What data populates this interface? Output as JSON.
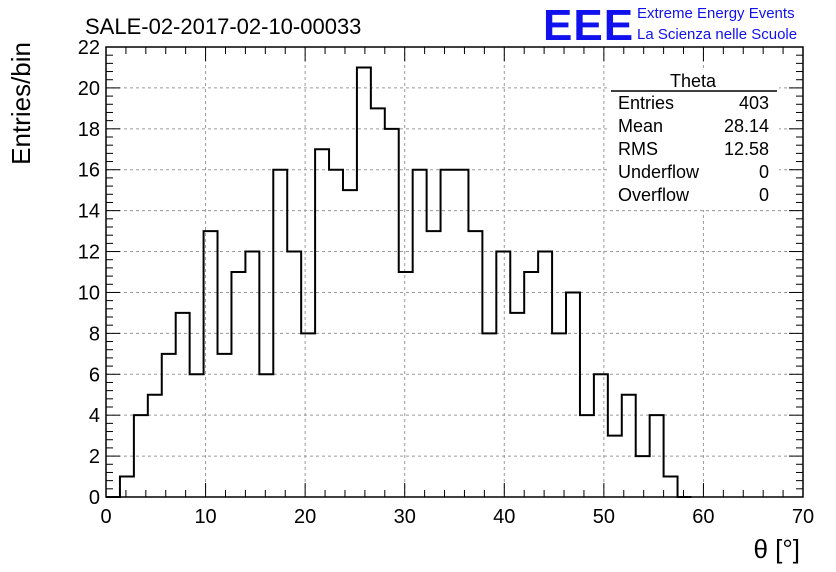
{
  "chart_data": {
    "type": "bar",
    "style": "step-histogram",
    "title": "SALE-02-2017-02-10-00033",
    "xlabel": "θ [°]",
    "ylabel": "Entries/bin",
    "xlim": [
      0,
      70
    ],
    "ylim": [
      0,
      22
    ],
    "x_ticks": [
      0,
      10,
      20,
      30,
      40,
      50,
      60,
      70
    ],
    "y_ticks": [
      0,
      2,
      4,
      6,
      8,
      10,
      12,
      14,
      16,
      18,
      20,
      22
    ],
    "bin_width": 1.4,
    "bin_start": 0,
    "values": [
      0,
      1,
      4,
      5,
      7,
      9,
      6,
      13,
      7,
      11,
      12,
      6,
      16,
      12,
      8,
      17,
      16,
      15,
      21,
      19,
      18,
      11,
      16,
      13,
      16,
      16,
      13,
      8,
      12,
      9,
      11,
      12,
      8,
      10,
      4,
      6,
      3,
      5,
      2,
      4,
      1,
      0
    ],
    "grid": true,
    "line_color": "#000000"
  },
  "stats_box": {
    "name": "Theta",
    "rows": [
      {
        "label": "Entries",
        "value": "403"
      },
      {
        "label": "Mean",
        "value": "28.14"
      },
      {
        "label": "RMS",
        "value": "12.58"
      },
      {
        "label": "Underflow",
        "value": "0"
      },
      {
        "label": "Overflow",
        "value": "0"
      }
    ]
  },
  "brand": {
    "logo": "EEE",
    "line1": "Extreme Energy Events",
    "line2": "La Scienza nelle Scuole",
    "color": "#1111ee"
  }
}
